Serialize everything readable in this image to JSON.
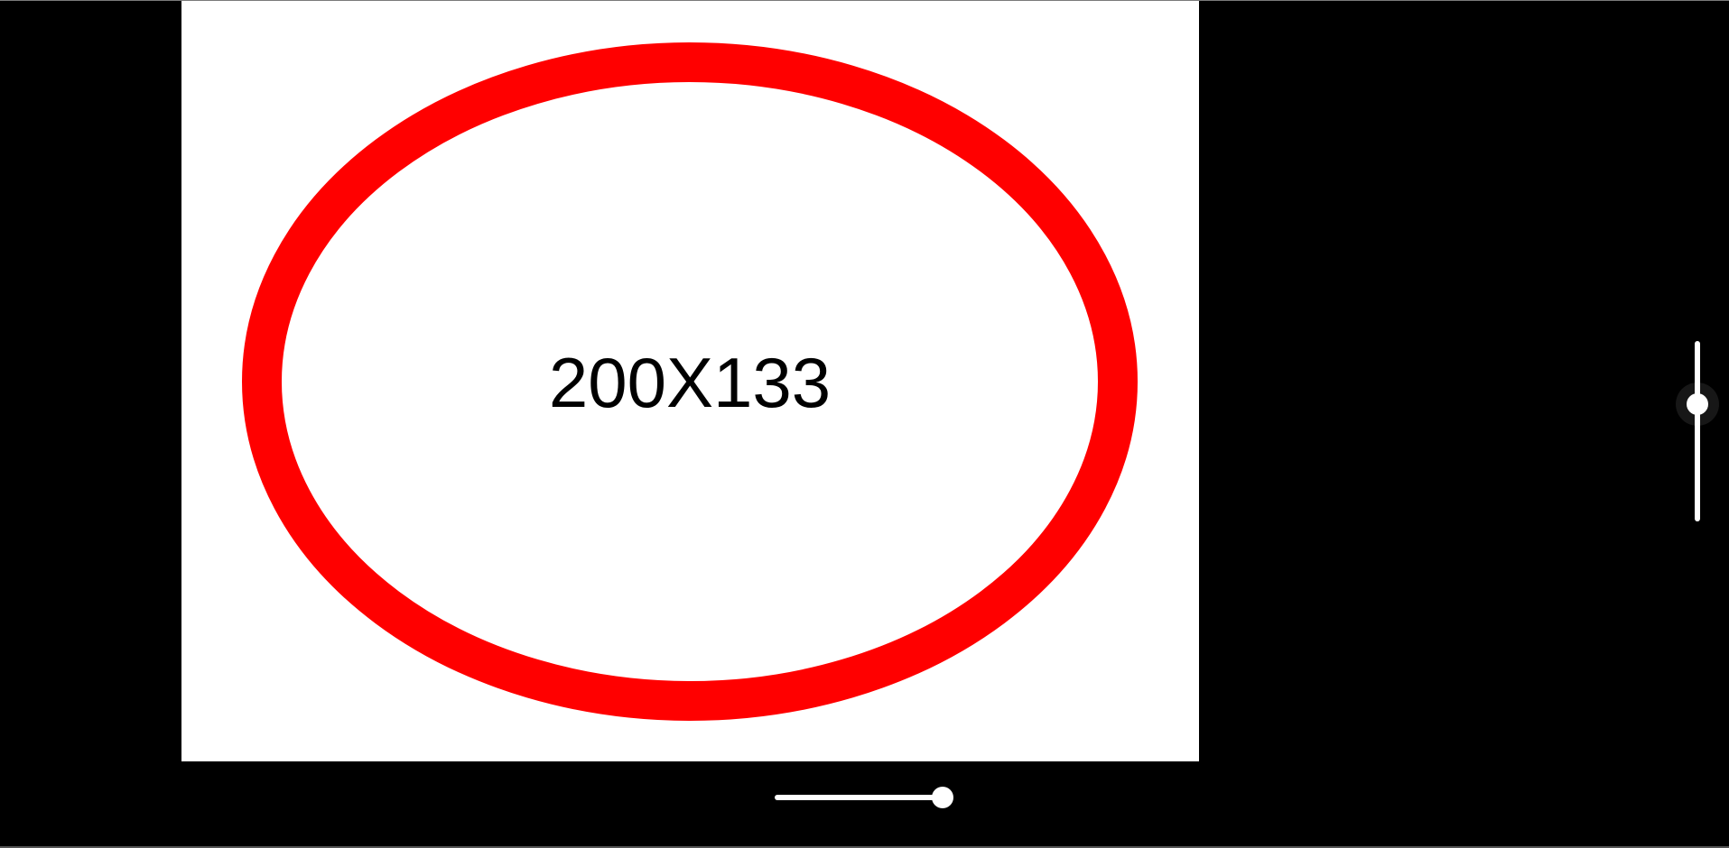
{
  "image": {
    "label": "200X133",
    "background_color": "#ffffff",
    "ring_color": "#ff0000",
    "text_color": "#000000"
  },
  "viewer": {
    "background_color": "#000000"
  },
  "horizontal_slider": {
    "value": 0.93,
    "track_color": "#ffffff",
    "thumb_color": "#ffffff"
  },
  "vertical_slider": {
    "value": 0.35,
    "track_color": "#ffffff",
    "thumb_color": "#ffffff"
  }
}
